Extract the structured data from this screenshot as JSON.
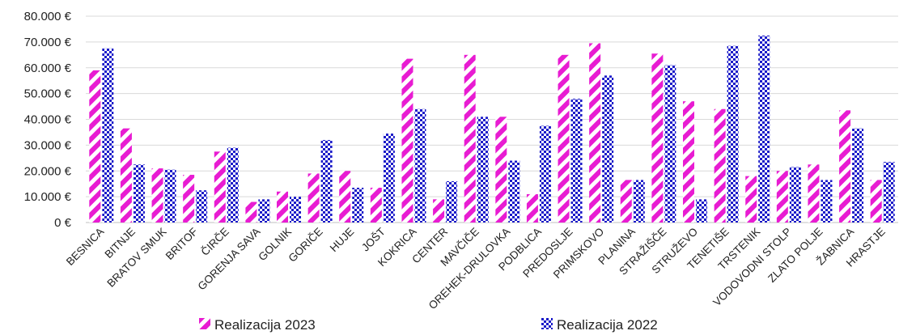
{
  "chart_data": {
    "type": "bar",
    "title": "",
    "xlabel": "",
    "ylabel": "",
    "ylim": [
      0,
      80000
    ],
    "y_ticks": [
      "0 €",
      "10.000 €",
      "20.000 €",
      "30.000 €",
      "40.000 €",
      "50.000 €",
      "60.000 €",
      "70.000 €",
      "80.000 €"
    ],
    "y_tick_values": [
      0,
      10000,
      20000,
      30000,
      40000,
      50000,
      60000,
      70000,
      80000
    ],
    "grid": true,
    "legend_position": "bottom",
    "categories": [
      "BESNICA",
      "BITNJE",
      "BRATOV SMUK",
      "BRITOF",
      "ČIRČE",
      "GORENJA SAVA",
      "GOLNIK",
      "GORIČE",
      "HUJE",
      "JOŠT",
      "KOKRICA",
      "CENTER",
      "MAVČIČE",
      "OREHEK-DRULOVKA",
      "PODBLICA",
      "PREDOSLJE",
      "PRIMSKOVO",
      "PLANINA",
      "STRAŽIŠČE",
      "STRUŽEVO",
      "TENETIŠE",
      "TRSTENIK",
      "VODOVODNI STOLP",
      "ZLATO POLJE",
      "ŽABNICA",
      "HRASTJE"
    ],
    "series": [
      {
        "name": "Realizacija 2023",
        "color": "#e81cd2",
        "pattern": "diagonal-stripes",
        "values": [
          59000,
          36500,
          21000,
          18500,
          27500,
          8000,
          12000,
          19000,
          20000,
          13500,
          63500,
          9000,
          65000,
          41000,
          11000,
          65000,
          69500,
          16500,
          65500,
          47000,
          44000,
          18000,
          20000,
          22500,
          43500,
          16500
        ]
      },
      {
        "name": "Realizacija 2022",
        "color": "#1a1ac8",
        "pattern": "checker-dots",
        "values": [
          67500,
          22500,
          20500,
          12500,
          29000,
          9000,
          10000,
          32000,
          13500,
          34500,
          44000,
          16000,
          41000,
          24000,
          37500,
          48000,
          57000,
          16500,
          61000,
          9000,
          68500,
          72500,
          21500,
          16500,
          36500,
          23500
        ]
      }
    ]
  }
}
